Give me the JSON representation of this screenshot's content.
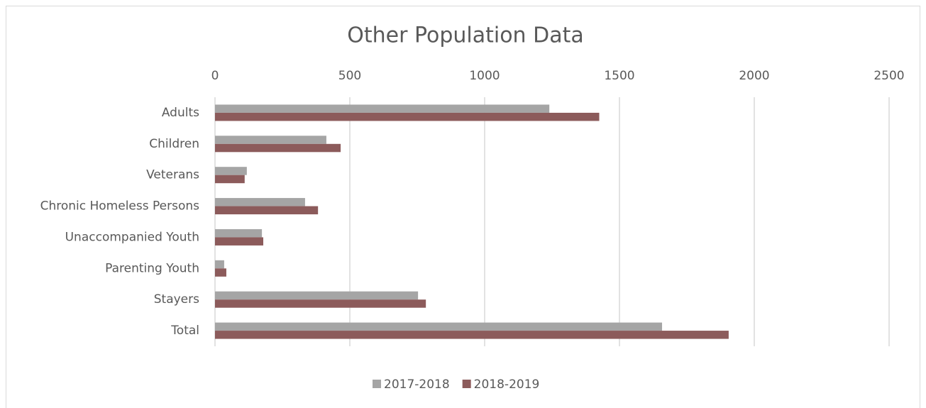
{
  "chart_data": {
    "type": "hbar",
    "title": "Other Population Data",
    "categories": [
      "Adults",
      "Children",
      "Veterans",
      "Chronic Homeless Persons",
      "Unaccompanied Youth",
      "Parenting Youth",
      "Stayers",
      "Total"
    ],
    "series": [
      {
        "name": "2017-2018",
        "color": "#a5a5a5",
        "values": [
          1240,
          413,
          118,
          334,
          174,
          34,
          753,
          1658
        ]
      },
      {
        "name": "2018-2019",
        "color": "#8c5b5b",
        "values": [
          1425,
          466,
          110,
          382,
          179,
          42,
          782,
          1905
        ]
      }
    ],
    "xlim": [
      0,
      2500
    ],
    "xticks": [
      0,
      500,
      1000,
      1500,
      2000,
      2500
    ],
    "grid": true,
    "legend": "bottom"
  }
}
